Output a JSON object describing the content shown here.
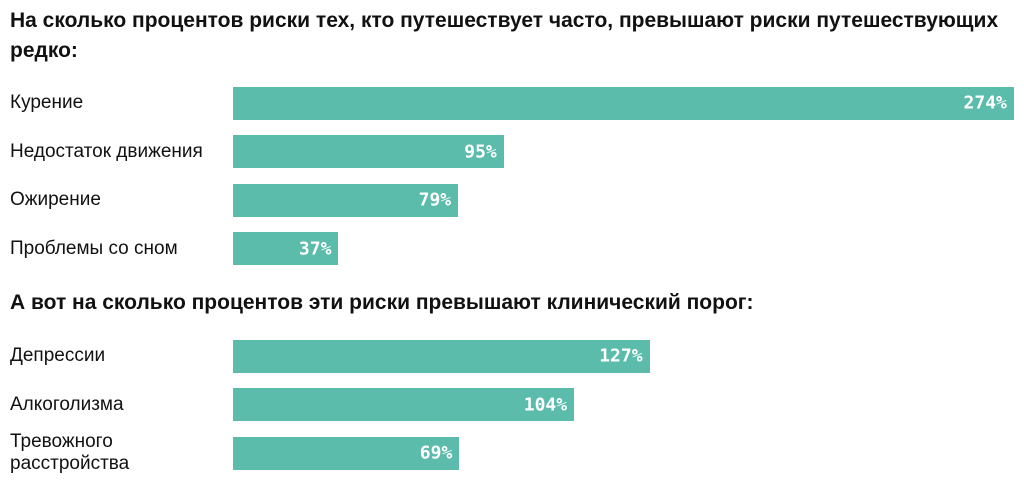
{
  "chart_data": [
    {
      "type": "bar",
      "orientation": "horizontal",
      "title": "На сколько процентов риски тех, кто путешествует часто, превышают риски путешествующих редко:",
      "categories": [
        "Курение",
        "Недостаток движения",
        "Ожирение",
        "Проблемы со сном"
      ],
      "values": [
        274,
        95,
        79,
        37
      ],
      "value_labels": [
        "274%",
        "95%",
        "79%",
        "37%"
      ],
      "color": "#5bbcab"
    },
    {
      "type": "bar",
      "orientation": "horizontal",
      "title": "А вот на сколько процентов эти риски превышают клинический порог:",
      "categories": [
        "Депрессии",
        "Алкоголизма",
        "Тревожного расстройства"
      ],
      "values": [
        127,
        104,
        69
      ],
      "value_labels": [
        "127%",
        "104%",
        "69%"
      ],
      "color": "#5bbcab"
    }
  ]
}
